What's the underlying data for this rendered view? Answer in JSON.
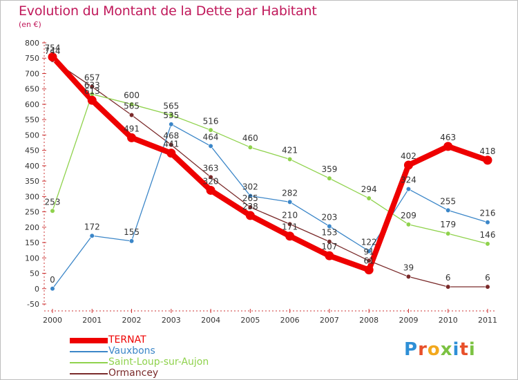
{
  "header": {
    "title": "Evolution du Montant de la Dette par Habitant",
    "subtitle": "(en €)"
  },
  "logo": {
    "text": "Proxiti",
    "colors": [
      "#2e8fd6",
      "#e8502a",
      "#f2a81d",
      "#7cc242",
      "#2e8fd6",
      "#e8502a",
      "#7cc242"
    ]
  },
  "chart_data": {
    "type": "line",
    "title": "Evolution du Montant de la Dette par Habitant",
    "subtitle": "(en €)",
    "x": [
      "2000",
      "2001",
      "2002",
      "2003",
      "2004",
      "2005",
      "2006",
      "2007",
      "2008",
      "2009",
      "2010",
      "2011"
    ],
    "ylim": [
      -50,
      800
    ],
    "yticks": [
      -50,
      0,
      50,
      100,
      150,
      200,
      250,
      300,
      350,
      400,
      450,
      500,
      550,
      600,
      650,
      700,
      750,
      800
    ],
    "grid": false,
    "legend": "bottom-left",
    "series": [
      {
        "name": "TERNAT",
        "color": "#ee0000",
        "values": [
          754,
          613,
          491,
          441,
          320,
          238,
          171,
          107,
          61,
          402,
          463,
          418
        ],
        "labels": [
          "754",
          "613",
          "491",
          "441",
          "320",
          "238",
          "171",
          "107",
          "61",
          "402",
          "463",
          "418"
        ]
      },
      {
        "name": "Vauxbons",
        "color": "#3b86c8",
        "values": [
          0,
          172,
          155,
          535,
          464,
          302,
          282,
          203,
          122,
          324,
          255,
          216
        ],
        "labels": [
          "0",
          "172",
          "155",
          "535",
          "464",
          "302",
          "282",
          "203",
          "122",
          "324",
          "255",
          "216"
        ]
      },
      {
        "name": "Saint-Loup-sur-Aujon",
        "color": "#8fd24c",
        "values": [
          253,
          633,
          600,
          565,
          516,
          460,
          421,
          359,
          294,
          209,
          179,
          146
        ],
        "labels": [
          "253",
          "633",
          "600",
          "565",
          "516",
          "460",
          "421",
          "359",
          "294",
          "209",
          "179",
          "146"
        ]
      },
      {
        "name": "Ormancey",
        "color": "#7a2a2a",
        "values": [
          744,
          657,
          565,
          468,
          363,
          265,
          210,
          153,
          91,
          39,
          6,
          6
        ],
        "labels": [
          "744",
          "657",
          "565",
          "468",
          "363",
          "265",
          "210",
          "153",
          "91",
          "39",
          "6",
          "6"
        ]
      }
    ]
  }
}
